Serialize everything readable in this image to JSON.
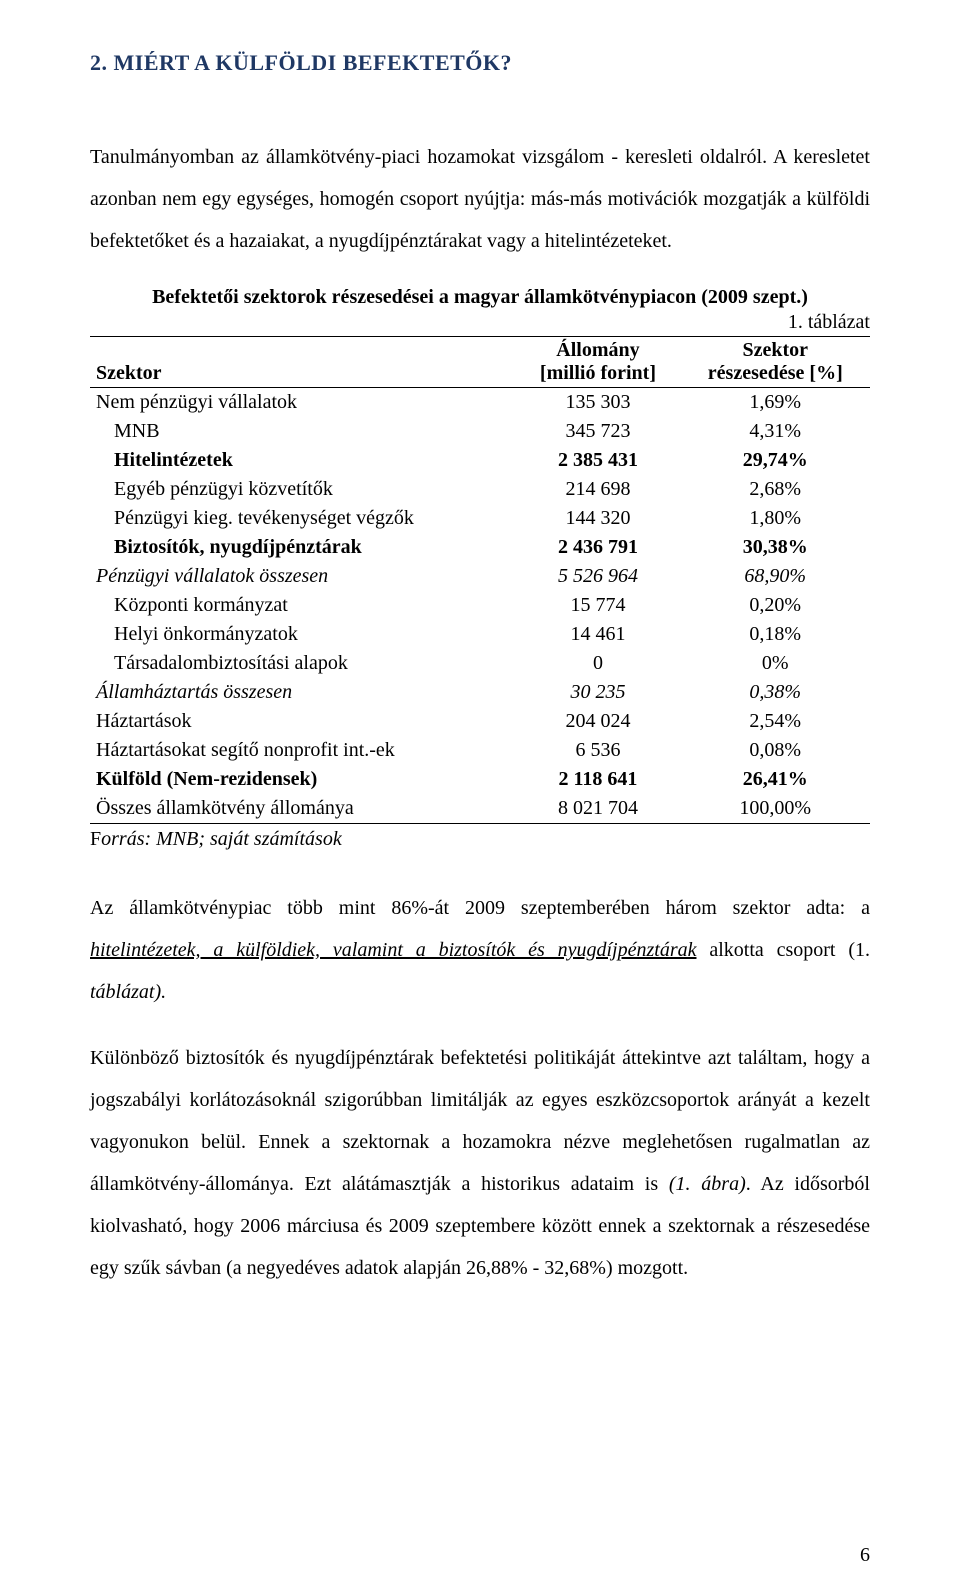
{
  "heading": "2.   MIÉRT A KÜLFÖLDI BEFEKTETŐK?",
  "para1": "Tanulmányomban az államkötvény-piaci hozamokat vizsgálom - keresleti oldalról. A keresletet azonban nem egy egységes, homogén csoport nyújtja: más-más motivációk mozgatják a külföldi befektetőket és a hazaiakat, a nyugdíjpénztárakat vagy a hitelintézeteket.",
  "table": {
    "title": "Befektetői szektorok részesedései a magyar államkötvénypiacon (2009 szept.)",
    "caption": "1.   táblázat",
    "headers": {
      "sector": "Szektor",
      "amount_line1": "Állomány",
      "amount_line2": "[millió forint]",
      "share_line1": "Szektor",
      "share_line2": "részesedése [%]"
    },
    "rows": [
      {
        "label": "Nem pénzügyi vállalatok",
        "amount": "135 303",
        "share": "1,69%",
        "indent": 0,
        "bold": false,
        "italic": false
      },
      {
        "label": "MNB",
        "amount": "345 723",
        "share": "4,31%",
        "indent": 1,
        "bold": false,
        "italic": false
      },
      {
        "label": "Hitelintézetek",
        "amount": "2 385 431",
        "share": "29,74%",
        "indent": 1,
        "bold": true,
        "italic": false
      },
      {
        "label": "Egyéb pénzügyi közvetítők",
        "amount": "214 698",
        "share": "2,68%",
        "indent": 1,
        "bold": false,
        "italic": false
      },
      {
        "label": "Pénzügyi kieg. tevékenységet végzők",
        "amount": "144 320",
        "share": "1,80%",
        "indent": 1,
        "bold": false,
        "italic": false
      },
      {
        "label": "Biztosítók, nyugdíjpénztárak",
        "amount": "2 436 791",
        "share": "30,38%",
        "indent": 1,
        "bold": true,
        "italic": false
      },
      {
        "label": "Pénzügyi vállalatok összesen",
        "amount": "5 526 964",
        "share": "68,90%",
        "indent": 0,
        "bold": false,
        "italic": true
      },
      {
        "label": "Központi kormányzat",
        "amount": "15 774",
        "share": "0,20%",
        "indent": 1,
        "bold": false,
        "italic": false
      },
      {
        "label": "Helyi önkormányzatok",
        "amount": "14 461",
        "share": "0,18%",
        "indent": 1,
        "bold": false,
        "italic": false
      },
      {
        "label": "Társadalombiztosítási alapok",
        "amount": "0",
        "share": "0%",
        "indent": 1,
        "bold": false,
        "italic": false
      },
      {
        "label": "Államháztartás összesen",
        "amount": "30 235",
        "share": "0,38%",
        "indent": 0,
        "bold": false,
        "italic": true
      },
      {
        "label": "Háztartások",
        "amount": "204 024",
        "share": "2,54%",
        "indent": 0,
        "bold": false,
        "italic": false
      },
      {
        "label": "Háztartásokat segítő nonprofit int.-ek",
        "amount": "6 536",
        "share": "0,08%",
        "indent": 0,
        "bold": false,
        "italic": false
      },
      {
        "label": "Külföld (Nem-rezidensek)",
        "amount": "2 118 641",
        "share": "26,41%",
        "indent": 0,
        "bold": true,
        "italic": false
      },
      {
        "label": "Összes államkötvény állománya",
        "amount": "8 021 704",
        "share": "100,00%",
        "indent": 0,
        "bold": false,
        "italic": false
      }
    ],
    "source_prefix": "F",
    "source_rest": "orrás: MNB; saját számítások"
  },
  "para2_pre": "Az államkötvénypiac több mint 86%-át 2009 szeptemberében három szektor adta: a ",
  "para2_ul": "hitelintézetek, a külföldiek, valamint a biztosítók és nyugdíjpénztárak",
  "para2_post": " alkotta csoport (1. ",
  "para2_tail_it": "táblázat).",
  "para3_a": "Különböző biztosítók és nyugdíjpénztárak befektetési politikáját áttekintve azt találtam, hogy a jogszabályi korlátozásoknál szigorúbban limitálják az egyes eszközcsoportok arányát a kezelt vagyonukon belül. Ennek a szektornak a hozamokra nézve meglehetősen rugalmatlan az államkötvény-állománya. Ezt alátámasztják a historikus adataim is ",
  "para3_it": "(1. ábra)",
  "para3_b": ". Az idősorból kiolvasható, hogy 2006 márciusa és 2009 szeptembere között ennek a szektornak a részesedése egy szűk sávban (a negyedéves adatok alapján 26,88% - 32,68%) mozgott.",
  "pagenum": "6"
}
